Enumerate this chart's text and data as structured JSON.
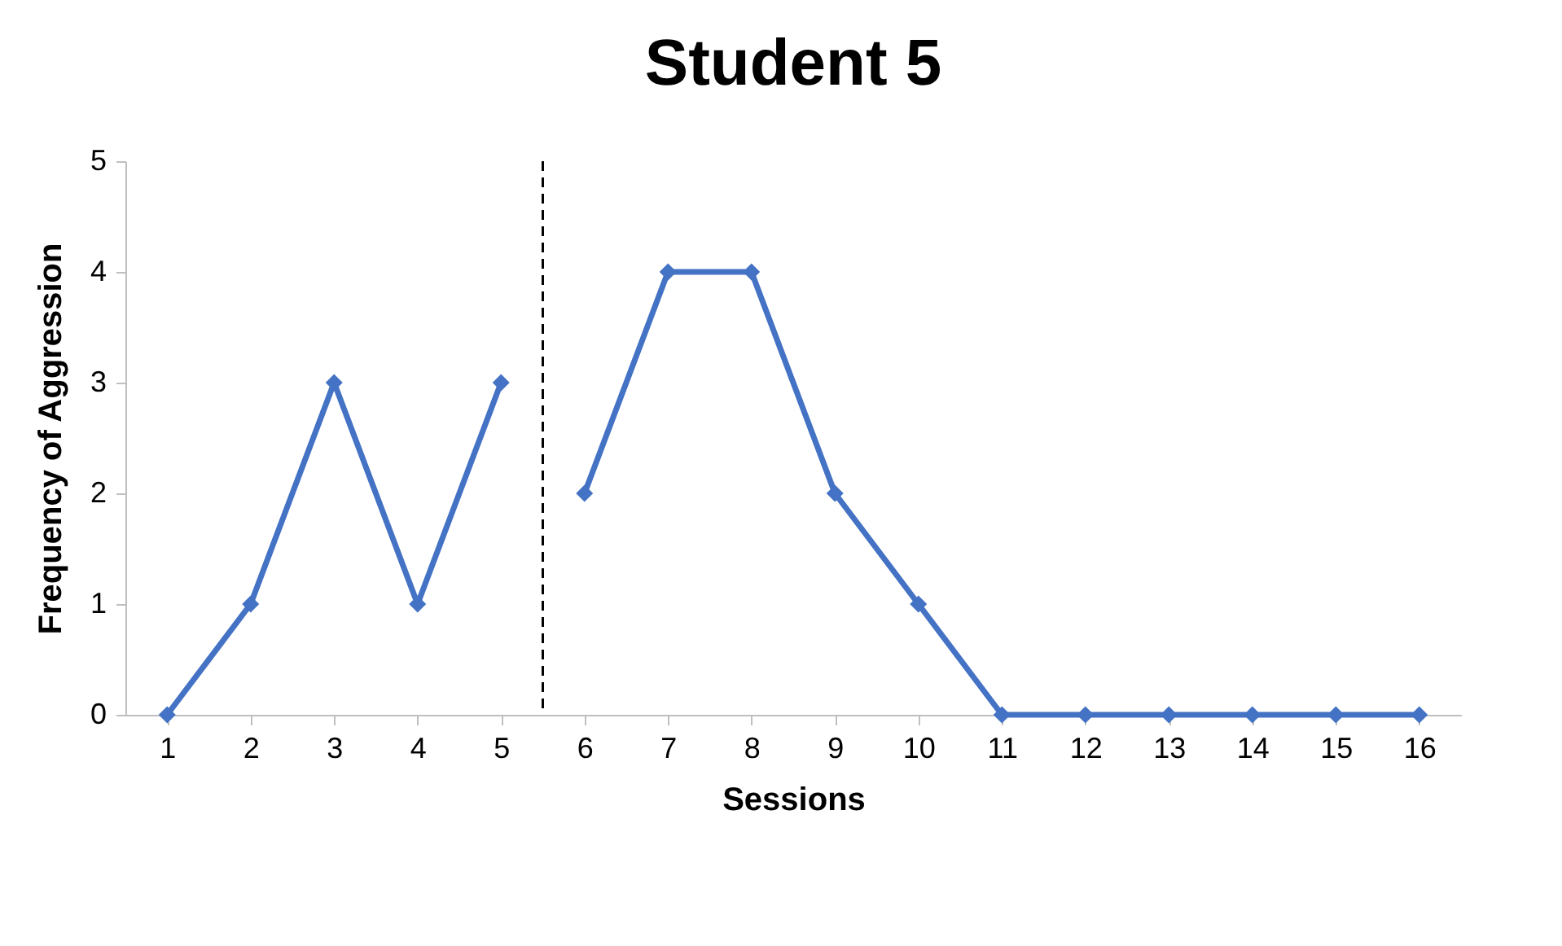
{
  "chart_data": {
    "type": "line",
    "title": "Student 5",
    "xlabel": "Sessions",
    "ylabel": "Frequency of Aggression",
    "x": [
      1,
      2,
      3,
      4,
      5,
      6,
      7,
      8,
      9,
      10,
      11,
      12,
      13,
      14,
      15,
      16
    ],
    "series": [
      {
        "color": "#4472c4",
        "values": [
          0,
          1,
          3,
          1,
          3,
          null,
          null,
          null,
          null,
          null,
          null,
          null,
          null,
          null,
          null,
          null
        ]
      },
      {
        "color": "#4472c4",
        "values": [
          null,
          null,
          null,
          null,
          null,
          2,
          4,
          4,
          2,
          1,
          0,
          0,
          0,
          0,
          0,
          0
        ]
      }
    ],
    "xlim": [
      0.5,
      16.5
    ],
    "xticks": [
      1,
      2,
      3,
      4,
      5,
      6,
      7,
      8,
      9,
      10,
      11,
      12,
      13,
      14,
      15,
      16
    ],
    "ylim": [
      0,
      5
    ],
    "yticks": [
      0,
      1,
      2,
      3,
      4,
      5
    ],
    "ref_lines": [
      {
        "axis": "x",
        "value": 5.5,
        "line_style": "dashed",
        "color": "#000000"
      }
    ],
    "grid": false,
    "legend": false,
    "marker": "diamond",
    "line_style": "solid"
  }
}
